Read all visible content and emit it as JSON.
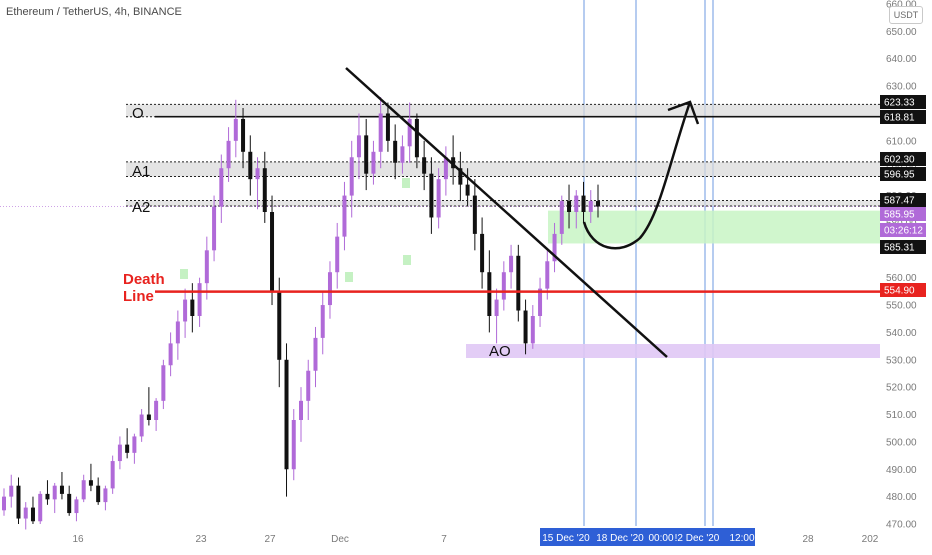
{
  "header": {
    "symbol_title": "Ethereum / TetherUS, 4h, BINANCE",
    "currency_badge": "USDT"
  },
  "colors": {
    "up": "#b06ad8",
    "down": "#111111",
    "death_line": "#e8231f",
    "green_zone": "#c8f5c4",
    "purple_zone": "#e0c8f5",
    "gray_band": "#d8d8d8",
    "vertical_line": "#6d9ae0",
    "date_badge": "#2e5fd6"
  },
  "chart_data": {
    "type": "candlestick",
    "x_axis": {
      "tick_labels": [
        "16",
        "23",
        "27",
        "Dec",
        "7",
        "28",
        "202"
      ],
      "highlighted_labels": [
        "15 Dec '20",
        "18 Dec '20",
        "00:00",
        "!2 Dec '20",
        "12:00"
      ]
    },
    "y_axis": {
      "range": [
        470,
        660
      ],
      "tick_labels": [
        "470.00",
        "480.00",
        "490.00",
        "500.00",
        "510.00",
        "520.00",
        "530.00",
        "540.00",
        "550.00",
        "560.00",
        "570.00",
        "580.00",
        "590.00",
        "600.00",
        "610.00",
        "620.00",
        "630.00",
        "640.00",
        "650.00",
        "660.00"
      ],
      "price_badges": [
        {
          "label": "623.33",
          "value": 623.33,
          "style": "dark"
        },
        {
          "label": "618.81",
          "value": 618.81,
          "style": "dark"
        },
        {
          "label": "602.30",
          "value": 602.3,
          "style": "dark"
        },
        {
          "label": "596.95",
          "value": 596.95,
          "style": "dark"
        },
        {
          "label": "587.47",
          "value": 587.47,
          "style": "dark"
        },
        {
          "label": "585.95",
          "value": 585.95,
          "style": "purple"
        },
        {
          "label": "03:26:12",
          "value": 583.2,
          "style": "purple"
        },
        {
          "label": "585.31",
          "value": 580.8,
          "style": "dark"
        },
        {
          "label": "554.90",
          "value": 554.9,
          "style": "red"
        }
      ]
    },
    "levels": [
      {
        "label": "O",
        "value": 618.81
      },
      {
        "label": "A1",
        "value": 596.95
      },
      {
        "label": "A2",
        "value": 587.47
      }
    ],
    "bands": [
      {
        "top": 623.33,
        "bottom": 618.81
      },
      {
        "top": 602.3,
        "bottom": 596.95
      },
      {
        "top": 588.2,
        "bottom": 586.2
      }
    ],
    "death_line": {
      "label_line1": "Death",
      "label_line2": "Line",
      "value": 554.9
    },
    "zones": [
      {
        "name": "green",
        "top": 584.5,
        "bottom": 572.5
      },
      {
        "name": "purple",
        "top": 533.5,
        "bottom": 532.0
      }
    ],
    "annotations": [
      {
        "text": "AO",
        "value": 533.5
      }
    ],
    "candles_ohlc_estimate": [
      [
        475,
        483,
        473,
        480
      ],
      [
        480,
        488,
        476,
        484
      ],
      [
        484,
        487,
        470,
        472
      ],
      [
        472,
        478,
        468,
        476
      ],
      [
        476,
        480,
        470,
        471
      ],
      [
        471,
        482,
        470,
        481
      ],
      [
        481,
        486,
        477,
        479
      ],
      [
        479,
        485,
        474,
        484
      ],
      [
        484,
        489,
        479,
        481
      ],
      [
        481,
        484,
        473,
        474
      ],
      [
        474,
        480,
        471,
        479
      ],
      [
        479,
        488,
        478,
        486
      ],
      [
        486,
        492,
        482,
        484
      ],
      [
        484,
        487,
        477,
        478
      ],
      [
        478,
        484,
        475,
        483
      ],
      [
        483,
        495,
        481,
        493
      ],
      [
        493,
        502,
        490,
        499
      ],
      [
        499,
        505,
        494,
        496
      ],
      [
        496,
        503,
        492,
        502
      ],
      [
        502,
        512,
        500,
        510
      ],
      [
        510,
        520,
        506,
        508
      ],
      [
        508,
        516,
        504,
        515
      ],
      [
        515,
        530,
        512,
        528
      ],
      [
        528,
        540,
        524,
        536
      ],
      [
        536,
        548,
        530,
        544
      ],
      [
        544,
        556,
        538,
        552
      ],
      [
        552,
        558,
        540,
        546
      ],
      [
        546,
        560,
        542,
        558
      ],
      [
        558,
        575,
        552,
        570
      ],
      [
        570,
        590,
        566,
        586
      ],
      [
        586,
        605,
        580,
        600
      ],
      [
        600,
        615,
        595,
        610
      ],
      [
        610,
        625,
        604,
        618
      ],
      [
        618,
        622,
        600,
        606
      ],
      [
        606,
        612,
        590,
        596
      ],
      [
        596,
        604,
        585,
        600
      ],
      [
        600,
        606,
        580,
        584
      ],
      [
        584,
        590,
        550,
        555
      ],
      [
        555,
        560,
        520,
        530
      ],
      [
        530,
        536,
        480,
        490
      ],
      [
        490,
        512,
        486,
        508
      ],
      [
        508,
        520,
        500,
        515
      ],
      [
        515,
        530,
        508,
        526
      ],
      [
        526,
        542,
        520,
        538
      ],
      [
        538,
        555,
        532,
        550
      ],
      [
        550,
        566,
        545,
        562
      ],
      [
        562,
        580,
        556,
        575
      ],
      [
        575,
        595,
        570,
        590
      ],
      [
        590,
        610,
        582,
        604
      ],
      [
        604,
        620,
        596,
        612
      ],
      [
        612,
        618,
        592,
        598
      ],
      [
        598,
        610,
        594,
        606
      ],
      [
        606,
        626,
        600,
        620
      ],
      [
        620,
        624,
        606,
        610
      ],
      [
        610,
        616,
        596,
        602
      ],
      [
        602,
        612,
        598,
        608
      ],
      [
        608,
        624,
        602,
        618
      ],
      [
        618,
        620,
        600,
        604
      ],
      [
        604,
        610,
        592,
        598
      ],
      [
        598,
        604,
        576,
        582
      ],
      [
        582,
        600,
        578,
        596
      ],
      [
        596,
        608,
        590,
        604
      ],
      [
        604,
        612,
        594,
        600
      ],
      [
        600,
        606,
        588,
        594
      ],
      [
        594,
        600,
        586,
        590
      ],
      [
        590,
        596,
        570,
        576
      ],
      [
        576,
        582,
        556,
        562
      ],
      [
        562,
        570,
        540,
        546
      ],
      [
        546,
        556,
        536,
        552
      ],
      [
        552,
        566,
        548,
        562
      ],
      [
        562,
        572,
        556,
        568
      ],
      [
        568,
        572,
        544,
        548
      ],
      [
        548,
        552,
        532,
        536
      ],
      [
        536,
        550,
        534,
        546
      ],
      [
        546,
        560,
        542,
        556
      ],
      [
        556,
        570,
        552,
        566
      ],
      [
        566,
        580,
        562,
        576
      ],
      [
        576,
        590,
        572,
        588
      ],
      [
        588,
        594,
        578,
        584
      ],
      [
        584,
        592,
        578,
        590
      ],
      [
        590,
        595,
        580,
        584
      ],
      [
        584,
        592,
        580,
        588
      ],
      [
        588,
        594,
        582,
        586
      ]
    ]
  }
}
